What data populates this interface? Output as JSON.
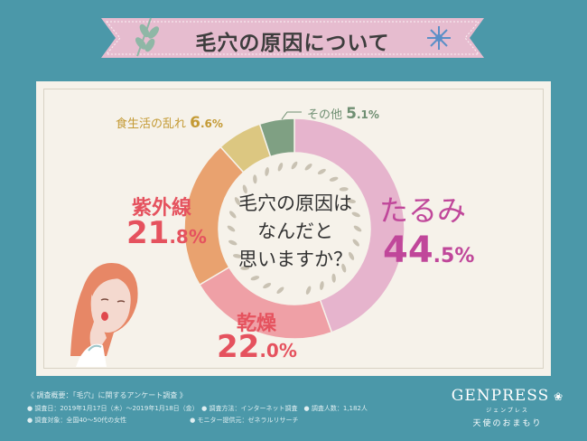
{
  "header": {
    "title": "毛穴の原因について"
  },
  "center_question": [
    "毛穴の原因は",
    "なんだと",
    "思いますか？"
  ],
  "chart_data": {
    "type": "pie",
    "subtype": "donut",
    "title": "毛穴の原因について",
    "slices": [
      {
        "label": "たるみ",
        "value_int": "44",
        "value_dec": ".5%",
        "value": 44.5,
        "color": "#e6b4cd"
      },
      {
        "label": "乾燥",
        "value_int": "22",
        "value_dec": ".0%",
        "value": 22.0,
        "color": "#efa0a6"
      },
      {
        "label": "紫外線",
        "value_int": "21",
        "value_dec": ".8%",
        "value": 21.8,
        "color": "#e9a26f"
      },
      {
        "label": "食生活の乱れ",
        "value_int": "6",
        "value_dec": ".6%",
        "value": 6.6,
        "color": "#dcc781"
      },
      {
        "label": "その他",
        "value_int": "5",
        "value_dec": ".1%",
        "value": 5.1,
        "color": "#7fa083"
      }
    ]
  },
  "footer": {
    "summary": "《 調査概要：「毛穴」に関するアンケート調査 》",
    "line1": "● 調査日：2019年1月17日（木）〜2019年1月18日（金）　● 調査方法：インターネット調査　● 調査人数：1,182人",
    "line2": "● 調査対象：全国40〜50代の女性　　　　　　　　　　● モニター提供元：ゼネラルリサーチ"
  },
  "logo": {
    "brand": "GENPRESS",
    "kana": "ジェンプレス",
    "tagline": "天使のおまもり"
  },
  "colors": {
    "background": "#4b98a9",
    "banner": "#e6bccf",
    "card": "#f6f2ea"
  }
}
